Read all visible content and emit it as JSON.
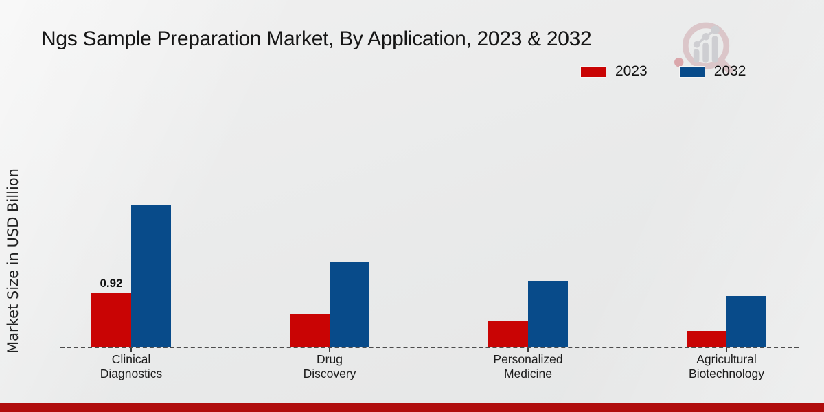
{
  "title": "Ngs Sample Preparation Market, By Application, 2023 & 2032",
  "legend": {
    "items": [
      {
        "label": "2023",
        "color": "#c90404"
      },
      {
        "label": "2032",
        "color": "#084b8a"
      }
    ]
  },
  "icons": {
    "watermark": "magnifier-growth-chart-icon"
  },
  "accent": {
    "footer_bar_color": "#b00d0d",
    "baseline_color": "#4d4d4d"
  },
  "chart_data": {
    "type": "bar",
    "title": "Ngs Sample Preparation Market, By Application, 2023 & 2032",
    "xlabel": "",
    "ylabel": "Market Size in USD Billion",
    "categories": [
      "Clinical Diagnostics",
      "Drug Discovery",
      "Personalized Medicine",
      "Agricultural Biotechnology"
    ],
    "series": [
      {
        "name": "2023",
        "color": "#c90404",
        "values": [
          0.92,
          0.55,
          0.44,
          0.28
        ],
        "labels": [
          "0.92",
          "",
          "",
          ""
        ]
      },
      {
        "name": "2032",
        "color": "#084b8a",
        "values": [
          2.38,
          1.42,
          1.11,
          0.86
        ],
        "labels": [
          "",
          "",
          "",
          ""
        ]
      }
    ],
    "ylim": [
      0,
      2.47
    ],
    "grid": false,
    "y_axis_visible": false,
    "baseline_style": "dashed",
    "legend_position": "top-right",
    "annotations": [
      {
        "series": "2023",
        "category": "Clinical Diagnostics",
        "text": "0.92"
      }
    ]
  }
}
